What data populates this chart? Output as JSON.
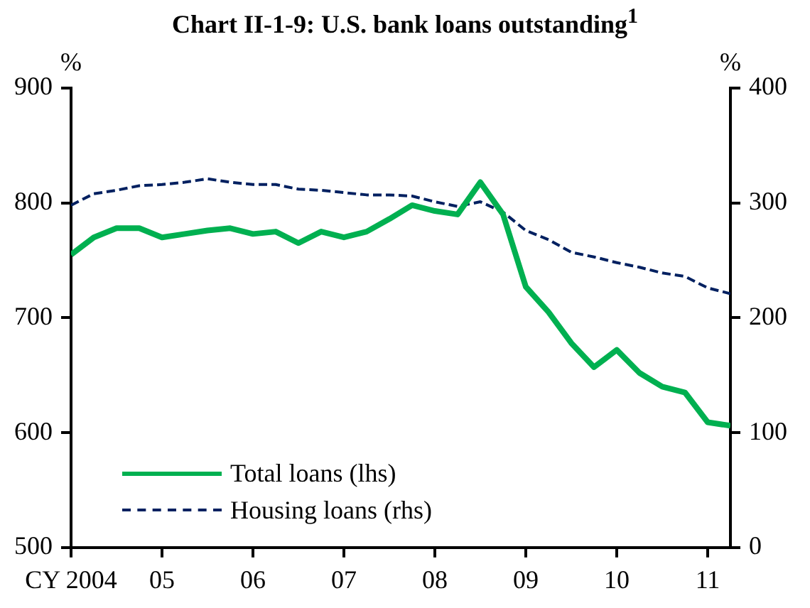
{
  "chart_data": {
    "type": "line",
    "title": "Chart II-1-9: U.S. bank loans outstanding$^{1}$",
    "ylabel": "%",
    "y2label": "%",
    "x": [
      2004,
      2004.25,
      2004.5,
      2004.75,
      2005,
      2005.25,
      2005.5,
      2005.75,
      2006,
      2006.25,
      2006.5,
      2006.75,
      2007,
      2007.25,
      2007.5,
      2007.75,
      2008,
      2008.25,
      2008.5,
      2008.75,
      2009,
      2009.25,
      2009.5,
      2009.75,
      2010,
      2010.25,
      2010.5,
      2010.75,
      2011,
      2011.25
    ],
    "series": [
      {
        "name": "Total loans (lhs)",
        "color": "#00b050",
        "line_style": "solid",
        "values": [
          755,
          770,
          778,
          778,
          770,
          773,
          776,
          778,
          773,
          775,
          765,
          775,
          770,
          775,
          786,
          798,
          793,
          790,
          818,
          790,
          727,
          705,
          678,
          657,
          672,
          652,
          640,
          635,
          609,
          606
        ]
      },
      {
        "name": "Housing loans (rhs)",
        "color": "#002060",
        "line_style": "dashed",
        "axis": "y2",
        "values": [
          298,
          308,
          311,
          315,
          316,
          318,
          321,
          318,
          316,
          316,
          312,
          311,
          309,
          307,
          307,
          306,
          301,
          297,
          301,
          292,
          276,
          268,
          257,
          253,
          248,
          244,
          239,
          236,
          226,
          221
        ]
      }
    ],
    "xlim": [
      2004,
      2011.25
    ],
    "xticks": [
      {
        "value": 2004,
        "label": "CY 2004"
      },
      {
        "value": 2005,
        "label": "05"
      },
      {
        "value": 2006,
        "label": "06"
      },
      {
        "value": 2007,
        "label": "07"
      },
      {
        "value": 2008,
        "label": "08"
      },
      {
        "value": 2009,
        "label": "09"
      },
      {
        "value": 2010,
        "label": "10"
      },
      {
        "value": 2011,
        "label": "11"
      }
    ],
    "ylim": [
      500,
      900
    ],
    "yticks": [
      500,
      600,
      700,
      800,
      900
    ],
    "y2lim": [
      0,
      400
    ],
    "y2ticks": [
      0,
      100,
      200,
      300,
      400
    ],
    "grid": false,
    "legend": "bottom left",
    "marker": "none"
  }
}
